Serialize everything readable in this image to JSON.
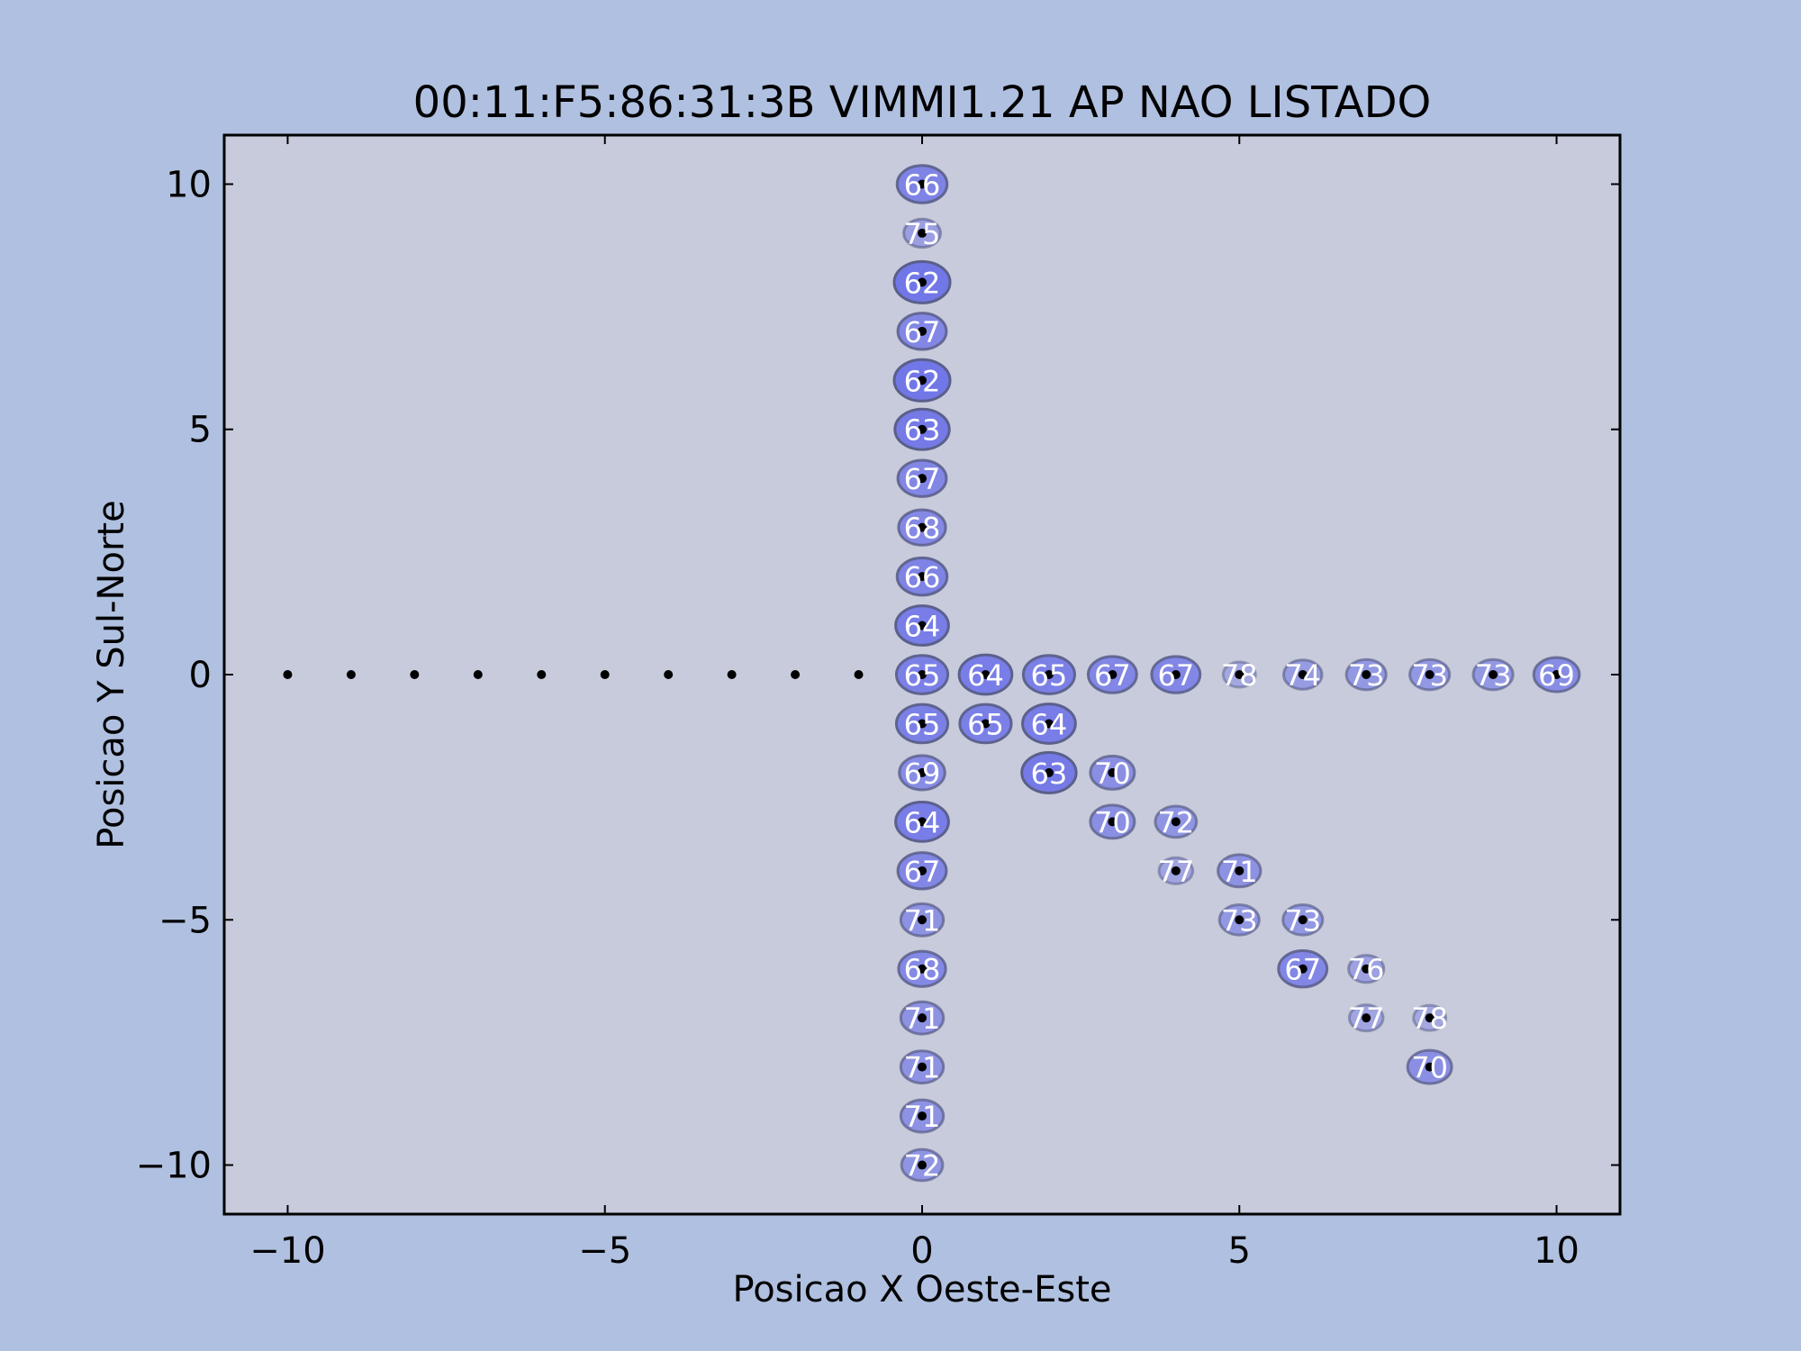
{
  "chart_data": {
    "type": "scatter",
    "title": "00:11:F5:86:31:3B VIMMI1.21 AP NAO LISTADO",
    "xlabel": "Posicao X Oeste-Este",
    "ylabel": "Posicao Y Sul-Norte",
    "xlim": [
      -11,
      11
    ],
    "ylim": [
      -11,
      11
    ],
    "xticks": [
      -10,
      -5,
      0,
      5,
      10
    ],
    "yticks": [
      -10,
      -5,
      0,
      5,
      10
    ],
    "xtick_labels": [
      "−10",
      "−5",
      "0",
      "5",
      "10"
    ],
    "ytick_labels": [
      "−10",
      "−5",
      "0",
      "5",
      "10"
    ],
    "grid": false,
    "colors": {
      "figure_bg": "#b0c0e0",
      "axes_bg": "#c8cbdb",
      "marker_fill": "#6d72e8",
      "marker_edge": "#5a5f8a",
      "point": "#000000",
      "label_text": "#ffffff"
    },
    "points": [
      {
        "x": -10,
        "y": 0
      },
      {
        "x": -9,
        "y": 0
      },
      {
        "x": -8,
        "y": 0
      },
      {
        "x": -7,
        "y": 0
      },
      {
        "x": -6,
        "y": 0
      },
      {
        "x": -5,
        "y": 0
      },
      {
        "x": -4,
        "y": 0
      },
      {
        "x": -3,
        "y": 0
      },
      {
        "x": -2,
        "y": 0
      },
      {
        "x": -1,
        "y": 0
      },
      {
        "x": 0,
        "y": 10,
        "v": 66
      },
      {
        "x": 0,
        "y": 9,
        "v": 75
      },
      {
        "x": 0,
        "y": 8,
        "v": 62
      },
      {
        "x": 0,
        "y": 7,
        "v": 67
      },
      {
        "x": 0,
        "y": 6,
        "v": 62
      },
      {
        "x": 0,
        "y": 5,
        "v": 63
      },
      {
        "x": 0,
        "y": 4,
        "v": 67
      },
      {
        "x": 0,
        "y": 3,
        "v": 68
      },
      {
        "x": 0,
        "y": 2,
        "v": 66
      },
      {
        "x": 0,
        "y": 1,
        "v": 64
      },
      {
        "x": 0,
        "y": 0,
        "v": 65
      },
      {
        "x": 0,
        "y": -1,
        "v": 65
      },
      {
        "x": 0,
        "y": -2,
        "v": 69
      },
      {
        "x": 0,
        "y": -3,
        "v": 64
      },
      {
        "x": 0,
        "y": -4,
        "v": 67
      },
      {
        "x": 0,
        "y": -5,
        "v": 71
      },
      {
        "x": 0,
        "y": -6,
        "v": 68
      },
      {
        "x": 0,
        "y": -7,
        "v": 71
      },
      {
        "x": 0,
        "y": -8,
        "v": 71
      },
      {
        "x": 0,
        "y": -9,
        "v": 71
      },
      {
        "x": 0,
        "y": -10,
        "v": 72
      },
      {
        "x": 1,
        "y": 0,
        "v": 64
      },
      {
        "x": 2,
        "y": 0,
        "v": 65
      },
      {
        "x": 3,
        "y": 0,
        "v": 67
      },
      {
        "x": 4,
        "y": 0,
        "v": 67
      },
      {
        "x": 5,
        "y": 0,
        "v": 78
      },
      {
        "x": 6,
        "y": 0,
        "v": 74
      },
      {
        "x": 7,
        "y": 0,
        "v": 73
      },
      {
        "x": 8,
        "y": 0,
        "v": 73
      },
      {
        "x": 9,
        "y": 0,
        "v": 73
      },
      {
        "x": 10,
        "y": 0,
        "v": 69
      },
      {
        "x": 1,
        "y": -1,
        "v": 65
      },
      {
        "x": 2,
        "y": -1,
        "v": 64
      },
      {
        "x": 2,
        "y": -2,
        "v": 63
      },
      {
        "x": 3,
        "y": -2,
        "v": 70
      },
      {
        "x": 3,
        "y": -3,
        "v": 70
      },
      {
        "x": 4,
        "y": -3,
        "v": 72
      },
      {
        "x": 4,
        "y": -4,
        "v": 77
      },
      {
        "x": 5,
        "y": -4,
        "v": 71
      },
      {
        "x": 5,
        "y": -5,
        "v": 73
      },
      {
        "x": 6,
        "y": -5,
        "v": 73
      },
      {
        "x": 6,
        "y": -6,
        "v": 67
      },
      {
        "x": 7,
        "y": -6,
        "v": 76
      },
      {
        "x": 7,
        "y": -7,
        "v": 77
      },
      {
        "x": 8,
        "y": -7,
        "v": 78
      },
      {
        "x": 8,
        "y": -8,
        "v": 70
      }
    ]
  }
}
